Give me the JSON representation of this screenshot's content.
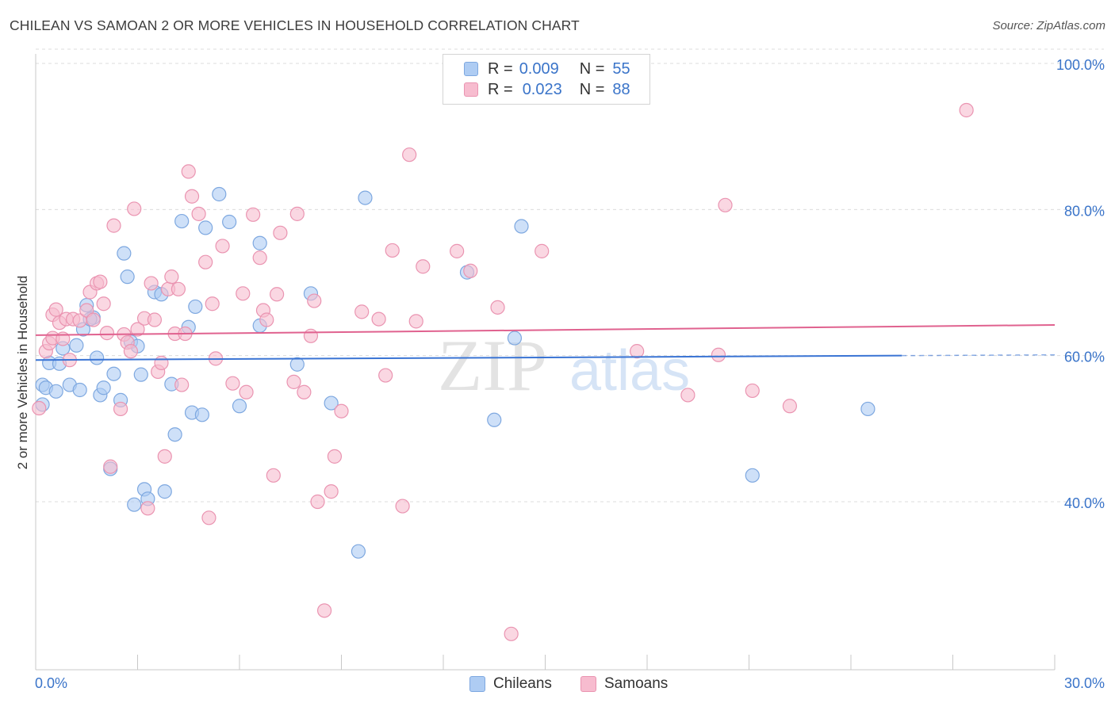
{
  "header": {
    "title": "CHILEAN VS SAMOAN 2 OR MORE VEHICLES IN HOUSEHOLD CORRELATION CHART",
    "source": "Source: ZipAtlas.com"
  },
  "legend": {
    "rows": [
      {
        "r_label": "R =",
        "r_value": "0.009",
        "n_label": "N =",
        "n_value": "55"
      },
      {
        "r_label": "R =",
        "r_value": "0.023",
        "n_label": "N =",
        "n_value": "88"
      }
    ]
  },
  "bottom_legend": {
    "chileans": "Chileans",
    "samoans": "Samoans"
  },
  "watermark": {
    "zip": "ZIP",
    "atlas": "atlas"
  },
  "colors": {
    "blue_fill": "#aeccf3",
    "blue_stroke": "#7ea8e0",
    "blue_line": "#3a74d4",
    "pink_fill": "#f7bccf",
    "pink_stroke": "#ea94b1",
    "pink_line": "#e0628f",
    "tick_label": "#3a74c9",
    "grid": "#dcdcdc"
  },
  "chart_data": {
    "type": "scatter",
    "title": "CHILEAN VS SAMOAN 2 OR MORE VEHICLES IN HOUSEHOLD CORRELATION CHART",
    "xlabel": "",
    "ylabel": "2 or more Vehicles in Household",
    "xlim": [
      0,
      30
    ],
    "ylim": [
      17,
      100
    ],
    "x_tick_labels": [
      "0.0%",
      "30.0%"
    ],
    "y_ticks": [
      40,
      60,
      80,
      100
    ],
    "y_tick_labels": [
      "40.0%",
      "60.0%",
      "80.0%",
      "100.0%"
    ],
    "grid": true,
    "legend_position": "top-center",
    "series": [
      {
        "name": "Chileans",
        "trend": {
          "x": [
            0,
            25.5
          ],
          "y": [
            59.4,
            60.0
          ],
          "dashed_to_x": 30
        },
        "points": [
          [
            0.2,
            53.3
          ],
          [
            0.2,
            56.0
          ],
          [
            0.3,
            55.6
          ],
          [
            0.4,
            59.0
          ],
          [
            0.6,
            55.1
          ],
          [
            0.7,
            58.9
          ],
          [
            0.8,
            61.0
          ],
          [
            1.0,
            56.0
          ],
          [
            1.2,
            61.4
          ],
          [
            1.3,
            55.3
          ],
          [
            1.4,
            63.6
          ],
          [
            1.5,
            66.9
          ],
          [
            1.7,
            65.2
          ],
          [
            1.8,
            59.7
          ],
          [
            1.9,
            54.6
          ],
          [
            2.0,
            55.6
          ],
          [
            2.3,
            57.5
          ],
          [
            2.2,
            44.5
          ],
          [
            2.5,
            53.9
          ],
          [
            2.6,
            74.0
          ],
          [
            2.7,
            70.8
          ],
          [
            2.8,
            61.9
          ],
          [
            2.9,
            39.6
          ],
          [
            3.0,
            61.3
          ],
          [
            3.1,
            57.4
          ],
          [
            3.2,
            41.7
          ],
          [
            3.3,
            40.4
          ],
          [
            3.5,
            68.7
          ],
          [
            3.7,
            68.4
          ],
          [
            3.8,
            41.4
          ],
          [
            4.0,
            56.1
          ],
          [
            4.1,
            49.2
          ],
          [
            4.3,
            78.4
          ],
          [
            4.5,
            63.9
          ],
          [
            4.6,
            52.2
          ],
          [
            4.7,
            66.7
          ],
          [
            4.9,
            51.9
          ],
          [
            5.0,
            77.5
          ],
          [
            5.4,
            82.1
          ],
          [
            5.7,
            78.3
          ],
          [
            6.0,
            53.1
          ],
          [
            6.6,
            64.1
          ],
          [
            6.6,
            75.4
          ],
          [
            7.7,
            58.8
          ],
          [
            8.1,
            68.5
          ],
          [
            8.7,
            53.5
          ],
          [
            9.5,
            33.2
          ],
          [
            9.7,
            81.6
          ],
          [
            12.7,
            71.4
          ],
          [
            13.5,
            51.2
          ],
          [
            14.1,
            62.4
          ],
          [
            14.3,
            77.7
          ],
          [
            21.1,
            43.6
          ],
          [
            24.5,
            52.7
          ],
          [
            1.6,
            65.0
          ]
        ]
      },
      {
        "name": "Samoans",
        "trend": {
          "x": [
            0,
            30
          ],
          "y": [
            62.8,
            64.2
          ]
        },
        "points": [
          [
            0.1,
            52.8
          ],
          [
            0.3,
            60.6
          ],
          [
            0.4,
            61.7
          ],
          [
            0.5,
            62.4
          ],
          [
            0.5,
            65.6
          ],
          [
            0.6,
            66.3
          ],
          [
            0.7,
            64.5
          ],
          [
            0.8,
            62.3
          ],
          [
            0.9,
            65.0
          ],
          [
            1.0,
            59.4
          ],
          [
            1.1,
            65.0
          ],
          [
            1.3,
            64.8
          ],
          [
            1.5,
            66.2
          ],
          [
            1.6,
            68.7
          ],
          [
            1.7,
            64.9
          ],
          [
            1.8,
            69.9
          ],
          [
            1.9,
            70.1
          ],
          [
            2.0,
            67.1
          ],
          [
            2.1,
            63.1
          ],
          [
            2.2,
            44.8
          ],
          [
            2.3,
            77.8
          ],
          [
            2.5,
            52.7
          ],
          [
            2.6,
            62.9
          ],
          [
            2.7,
            61.8
          ],
          [
            2.8,
            60.6
          ],
          [
            2.9,
            80.1
          ],
          [
            3.0,
            63.6
          ],
          [
            3.2,
            65.1
          ],
          [
            3.3,
            39.1
          ],
          [
            3.4,
            69.9
          ],
          [
            3.5,
            64.9
          ],
          [
            3.6,
            57.8
          ],
          [
            3.7,
            59.0
          ],
          [
            3.8,
            46.2
          ],
          [
            3.9,
            69.1
          ],
          [
            4.0,
            70.8
          ],
          [
            4.1,
            63.0
          ],
          [
            4.3,
            56.0
          ],
          [
            4.4,
            63.0
          ],
          [
            4.5,
            85.2
          ],
          [
            4.6,
            81.8
          ],
          [
            4.8,
            79.4
          ],
          [
            5.0,
            72.8
          ],
          [
            5.1,
            37.8
          ],
          [
            5.2,
            67.1
          ],
          [
            5.3,
            59.6
          ],
          [
            5.5,
            75.0
          ],
          [
            5.8,
            56.2
          ],
          [
            6.1,
            68.5
          ],
          [
            6.2,
            55.0
          ],
          [
            6.4,
            79.3
          ],
          [
            6.6,
            73.4
          ],
          [
            6.7,
            66.2
          ],
          [
            6.8,
            64.9
          ],
          [
            7.0,
            43.6
          ],
          [
            7.1,
            68.4
          ],
          [
            7.2,
            76.8
          ],
          [
            7.6,
            56.4
          ],
          [
            7.7,
            79.4
          ],
          [
            7.9,
            55.0
          ],
          [
            8.1,
            62.7
          ],
          [
            8.2,
            67.5
          ],
          [
            8.3,
            40.0
          ],
          [
            8.5,
            25.1
          ],
          [
            8.7,
            41.4
          ],
          [
            8.8,
            46.2
          ],
          [
            9.0,
            52.4
          ],
          [
            9.6,
            66.0
          ],
          [
            10.1,
            65.0
          ],
          [
            10.3,
            57.3
          ],
          [
            10.5,
            74.4
          ],
          [
            10.8,
            39.4
          ],
          [
            11.0,
            87.5
          ],
          [
            11.2,
            64.7
          ],
          [
            11.4,
            72.2
          ],
          [
            12.4,
            74.3
          ],
          [
            12.8,
            71.6
          ],
          [
            13.6,
            66.6
          ],
          [
            14.0,
            21.9
          ],
          [
            14.9,
            74.3
          ],
          [
            17.7,
            60.6
          ],
          [
            19.2,
            54.6
          ],
          [
            20.1,
            60.1
          ],
          [
            20.3,
            80.6
          ],
          [
            21.1,
            55.2
          ],
          [
            22.2,
            53.1
          ],
          [
            27.4,
            93.6
          ],
          [
            4.2,
            69.1
          ]
        ]
      }
    ]
  }
}
